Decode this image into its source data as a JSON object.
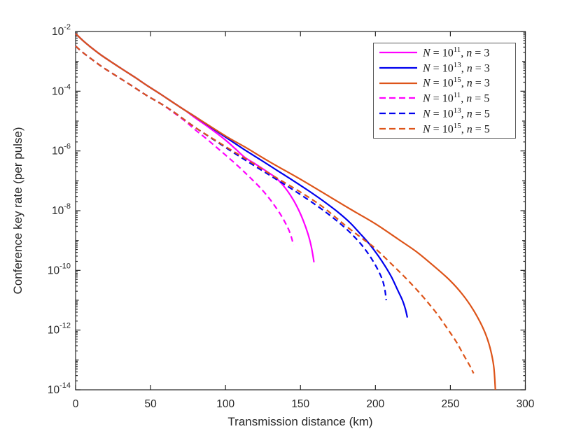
{
  "figure": {
    "background": "#ffffff",
    "axes_color": "#262626",
    "tick_label_color": "#262626"
  },
  "chart_data": {
    "type": "line",
    "title": "",
    "xlabel": "Transmission distance (km)",
    "ylabel": "Conference key rate (per pulse)",
    "grid": false,
    "legend_position": "top-right",
    "x_axis": {
      "min": 0,
      "max": 300,
      "ticks": [
        0,
        50,
        100,
        150,
        200,
        250,
        300
      ]
    },
    "y_axis": {
      "scale": "log10",
      "min_exp": -14,
      "max_exp": -2,
      "tick_exponents": [
        -2,
        -4,
        -6,
        -8,
        -10,
        -12,
        -14
      ]
    },
    "series": [
      {
        "id": "N1e11-n3",
        "label": "N = 10^11, n = 3",
        "label_parts": {
          "N_exp": "11",
          "n": "3"
        },
        "color": "#ff00ff",
        "line_style": "solid",
        "points_x_km": [
          0,
          5,
          10,
          17,
          25,
          32,
          40,
          48,
          57,
          66,
          73,
          80,
          88,
          95,
          101,
          107,
          113,
          120,
          127,
          134,
          140,
          145,
          149,
          152,
          155,
          157,
          158.3,
          159
        ],
        "points_log10_rate": [
          -2.07,
          -2.31,
          -2.52,
          -2.79,
          -3.06,
          -3.29,
          -3.55,
          -3.82,
          -4.11,
          -4.41,
          -4.64,
          -4.9,
          -5.18,
          -5.44,
          -5.68,
          -5.95,
          -6.22,
          -6.44,
          -6.67,
          -6.92,
          -7.25,
          -7.62,
          -8.0,
          -8.35,
          -8.78,
          -9.15,
          -9.5,
          -9.73
        ]
      },
      {
        "id": "N1e13-n3",
        "label": "N = 10^13, n = 3",
        "label_parts": {
          "N_exp": "13",
          "n": "3"
        },
        "color": "#0000ee",
        "line_style": "solid",
        "points_x_km": [
          0,
          5,
          10,
          17,
          25,
          32,
          40,
          48,
          57,
          66,
          73,
          80,
          90,
          100,
          113,
          125,
          135,
          145,
          155,
          165,
          175,
          183,
          190,
          196,
          202,
          207,
          211,
          215,
          218,
          220,
          221.3
        ],
        "points_log10_rate": [
          -2.07,
          -2.31,
          -2.52,
          -2.79,
          -3.06,
          -3.29,
          -3.55,
          -3.82,
          -4.11,
          -4.41,
          -4.64,
          -4.86,
          -5.2,
          -5.54,
          -5.97,
          -6.35,
          -6.67,
          -6.99,
          -7.32,
          -7.67,
          -8.05,
          -8.4,
          -8.78,
          -9.12,
          -9.52,
          -9.9,
          -10.25,
          -10.68,
          -11.0,
          -11.3,
          -11.58
        ]
      },
      {
        "id": "N1e15-n3",
        "label": "N = 10^15, n = 3",
        "label_parts": {
          "N_exp": "15",
          "n": "3"
        },
        "color": "#dd5419",
        "line_style": "solid",
        "points_x_km": [
          0,
          5,
          10,
          17,
          25,
          32,
          40,
          48,
          57,
          66,
          73,
          80,
          100,
          113,
          130,
          150,
          170,
          185,
          200,
          215,
          228,
          240,
          250,
          258,
          265,
          270,
          274,
          277,
          279,
          280
        ],
        "points_log10_rate": [
          -2.07,
          -2.31,
          -2.52,
          -2.79,
          -3.06,
          -3.29,
          -3.55,
          -3.82,
          -4.11,
          -4.41,
          -4.64,
          -4.86,
          -5.5,
          -5.87,
          -6.38,
          -6.95,
          -7.55,
          -8.0,
          -8.44,
          -8.95,
          -9.4,
          -9.9,
          -10.35,
          -10.8,
          -11.3,
          -11.75,
          -12.2,
          -12.7,
          -13.25,
          -14.0
        ]
      },
      {
        "id": "N1e11-n5",
        "label": "N = 10^11, n = 5",
        "label_parts": {
          "N_exp": "11",
          "n": "5"
        },
        "color": "#ff00ff",
        "line_style": "dashed",
        "points_x_km": [
          0,
          5,
          10,
          17,
          25,
          32,
          40,
          48,
          57,
          65,
          73,
          80,
          87,
          94,
          100,
          106,
          112,
          118,
          124,
          129,
          133,
          137,
          140,
          142.5,
          144.3,
          145.2
        ],
        "points_log10_rate": [
          -2.49,
          -2.71,
          -2.9,
          -3.16,
          -3.42,
          -3.64,
          -3.9,
          -4.16,
          -4.42,
          -4.7,
          -5.0,
          -5.3,
          -5.58,
          -5.88,
          -6.14,
          -6.4,
          -6.68,
          -6.97,
          -7.28,
          -7.58,
          -7.85,
          -8.15,
          -8.42,
          -8.68,
          -8.95,
          -9.15
        ]
      },
      {
        "id": "N1e13-n5",
        "label": "N = 10^13, n = 5",
        "label_parts": {
          "N_exp": "13",
          "n": "5"
        },
        "color": "#0000ee",
        "line_style": "dashed",
        "points_x_km": [
          0,
          5,
          10,
          17,
          25,
          32,
          40,
          48,
          57,
          65,
          80,
          95,
          113,
          130,
          145,
          160,
          172,
          182,
          190,
          196,
          201,
          204.5,
          206.3,
          207.2
        ],
        "points_log10_rate": [
          -2.49,
          -2.71,
          -2.9,
          -3.16,
          -3.42,
          -3.64,
          -3.9,
          -4.16,
          -4.42,
          -4.68,
          -5.22,
          -5.72,
          -6.3,
          -6.83,
          -7.3,
          -7.8,
          -8.25,
          -8.68,
          -9.1,
          -9.5,
          -9.92,
          -10.3,
          -10.65,
          -11.0
        ]
      },
      {
        "id": "N1e15-n5",
        "label": "N = 10^15, n = 5",
        "label_parts": {
          "N_exp": "15",
          "n": "5"
        },
        "color": "#dd5419",
        "line_style": "dashed",
        "points_x_km": [
          0,
          5,
          10,
          17,
          25,
          32,
          40,
          48,
          57,
          65,
          80,
          95,
          113,
          130,
          150,
          165,
          180,
          193,
          200,
          212,
          222,
          232,
          241,
          248,
          254,
          259,
          263,
          265.5
        ],
        "points_log10_rate": [
          -2.49,
          -2.71,
          -2.9,
          -3.16,
          -3.42,
          -3.64,
          -3.9,
          -4.16,
          -4.42,
          -4.68,
          -5.22,
          -5.7,
          -6.25,
          -6.78,
          -7.38,
          -7.88,
          -8.5,
          -9.0,
          -9.27,
          -9.85,
          -10.35,
          -10.9,
          -11.45,
          -11.95,
          -12.4,
          -12.85,
          -13.2,
          -13.45
        ]
      }
    ]
  }
}
